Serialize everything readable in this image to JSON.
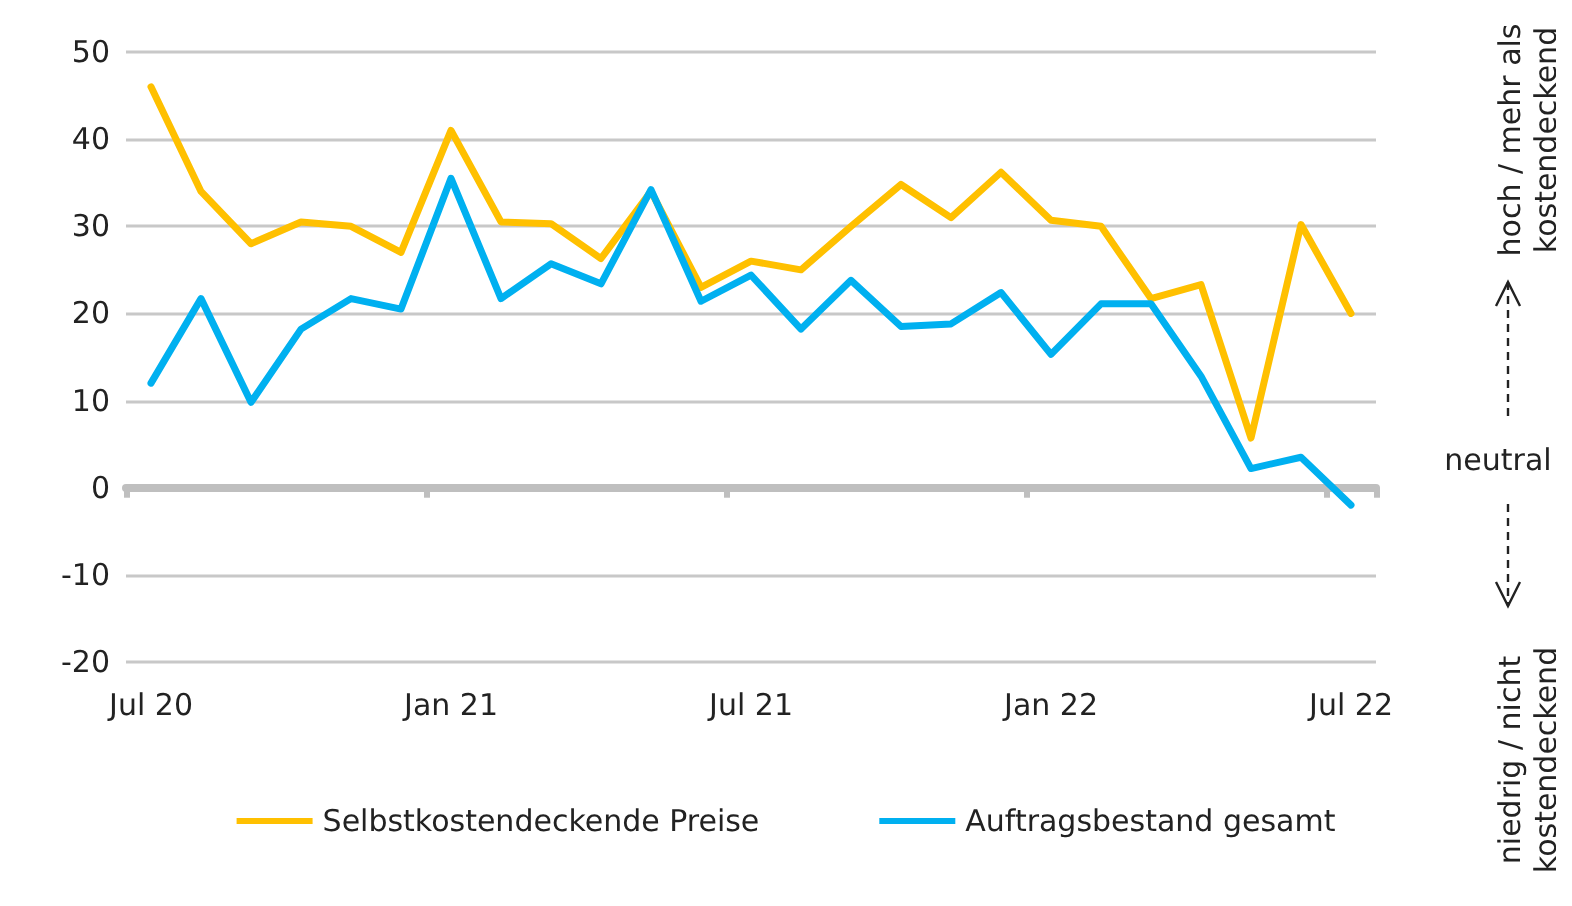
{
  "chart_data": {
    "type": "line",
    "categories": [
      "Jul 20",
      null,
      null,
      null,
      null,
      null,
      "Jan 21",
      null,
      null,
      null,
      null,
      null,
      "Jul 21",
      null,
      null,
      null,
      null,
      null,
      "Jan 22",
      null,
      null,
      null,
      null,
      null,
      "Jul 22"
    ],
    "series": [
      {
        "name": "Selbstkostendeckende Preise",
        "color": "#ffc000",
        "values": [
          46,
          34,
          28,
          30.5,
          30,
          27,
          41,
          30.5,
          30.3,
          26.3,
          34,
          23,
          26,
          25,
          30,
          34.8,
          31,
          36.2,
          30.7,
          30,
          21.7,
          23.3,
          5.7,
          30.2,
          20
        ]
      },
      {
        "name": "Auftragsbestand gesamt",
        "color": "#00b0f0",
        "values": [
          12,
          21.7,
          9.8,
          18.2,
          21.7,
          20.5,
          35.5,
          21.7,
          25.7,
          23.4,
          34.2,
          21.4,
          24.4,
          18.2,
          23.8,
          18.5,
          18.8,
          22.4,
          15.3,
          21.1,
          21.1,
          12.8,
          2.2,
          3.5,
          -2
        ]
      }
    ],
    "ylim": [
      -20,
      50
    ],
    "yticks": [
      -20,
      -10,
      0,
      10,
      20,
      30,
      40,
      50
    ],
    "grid": "y",
    "legend": "bottom",
    "marker": "none",
    "line_style": "solid",
    "annotations": [
      "hoch / mehr als\nkostendeckend",
      "neutral",
      "niedrig / nicht\nkostendeckend"
    ]
  }
}
